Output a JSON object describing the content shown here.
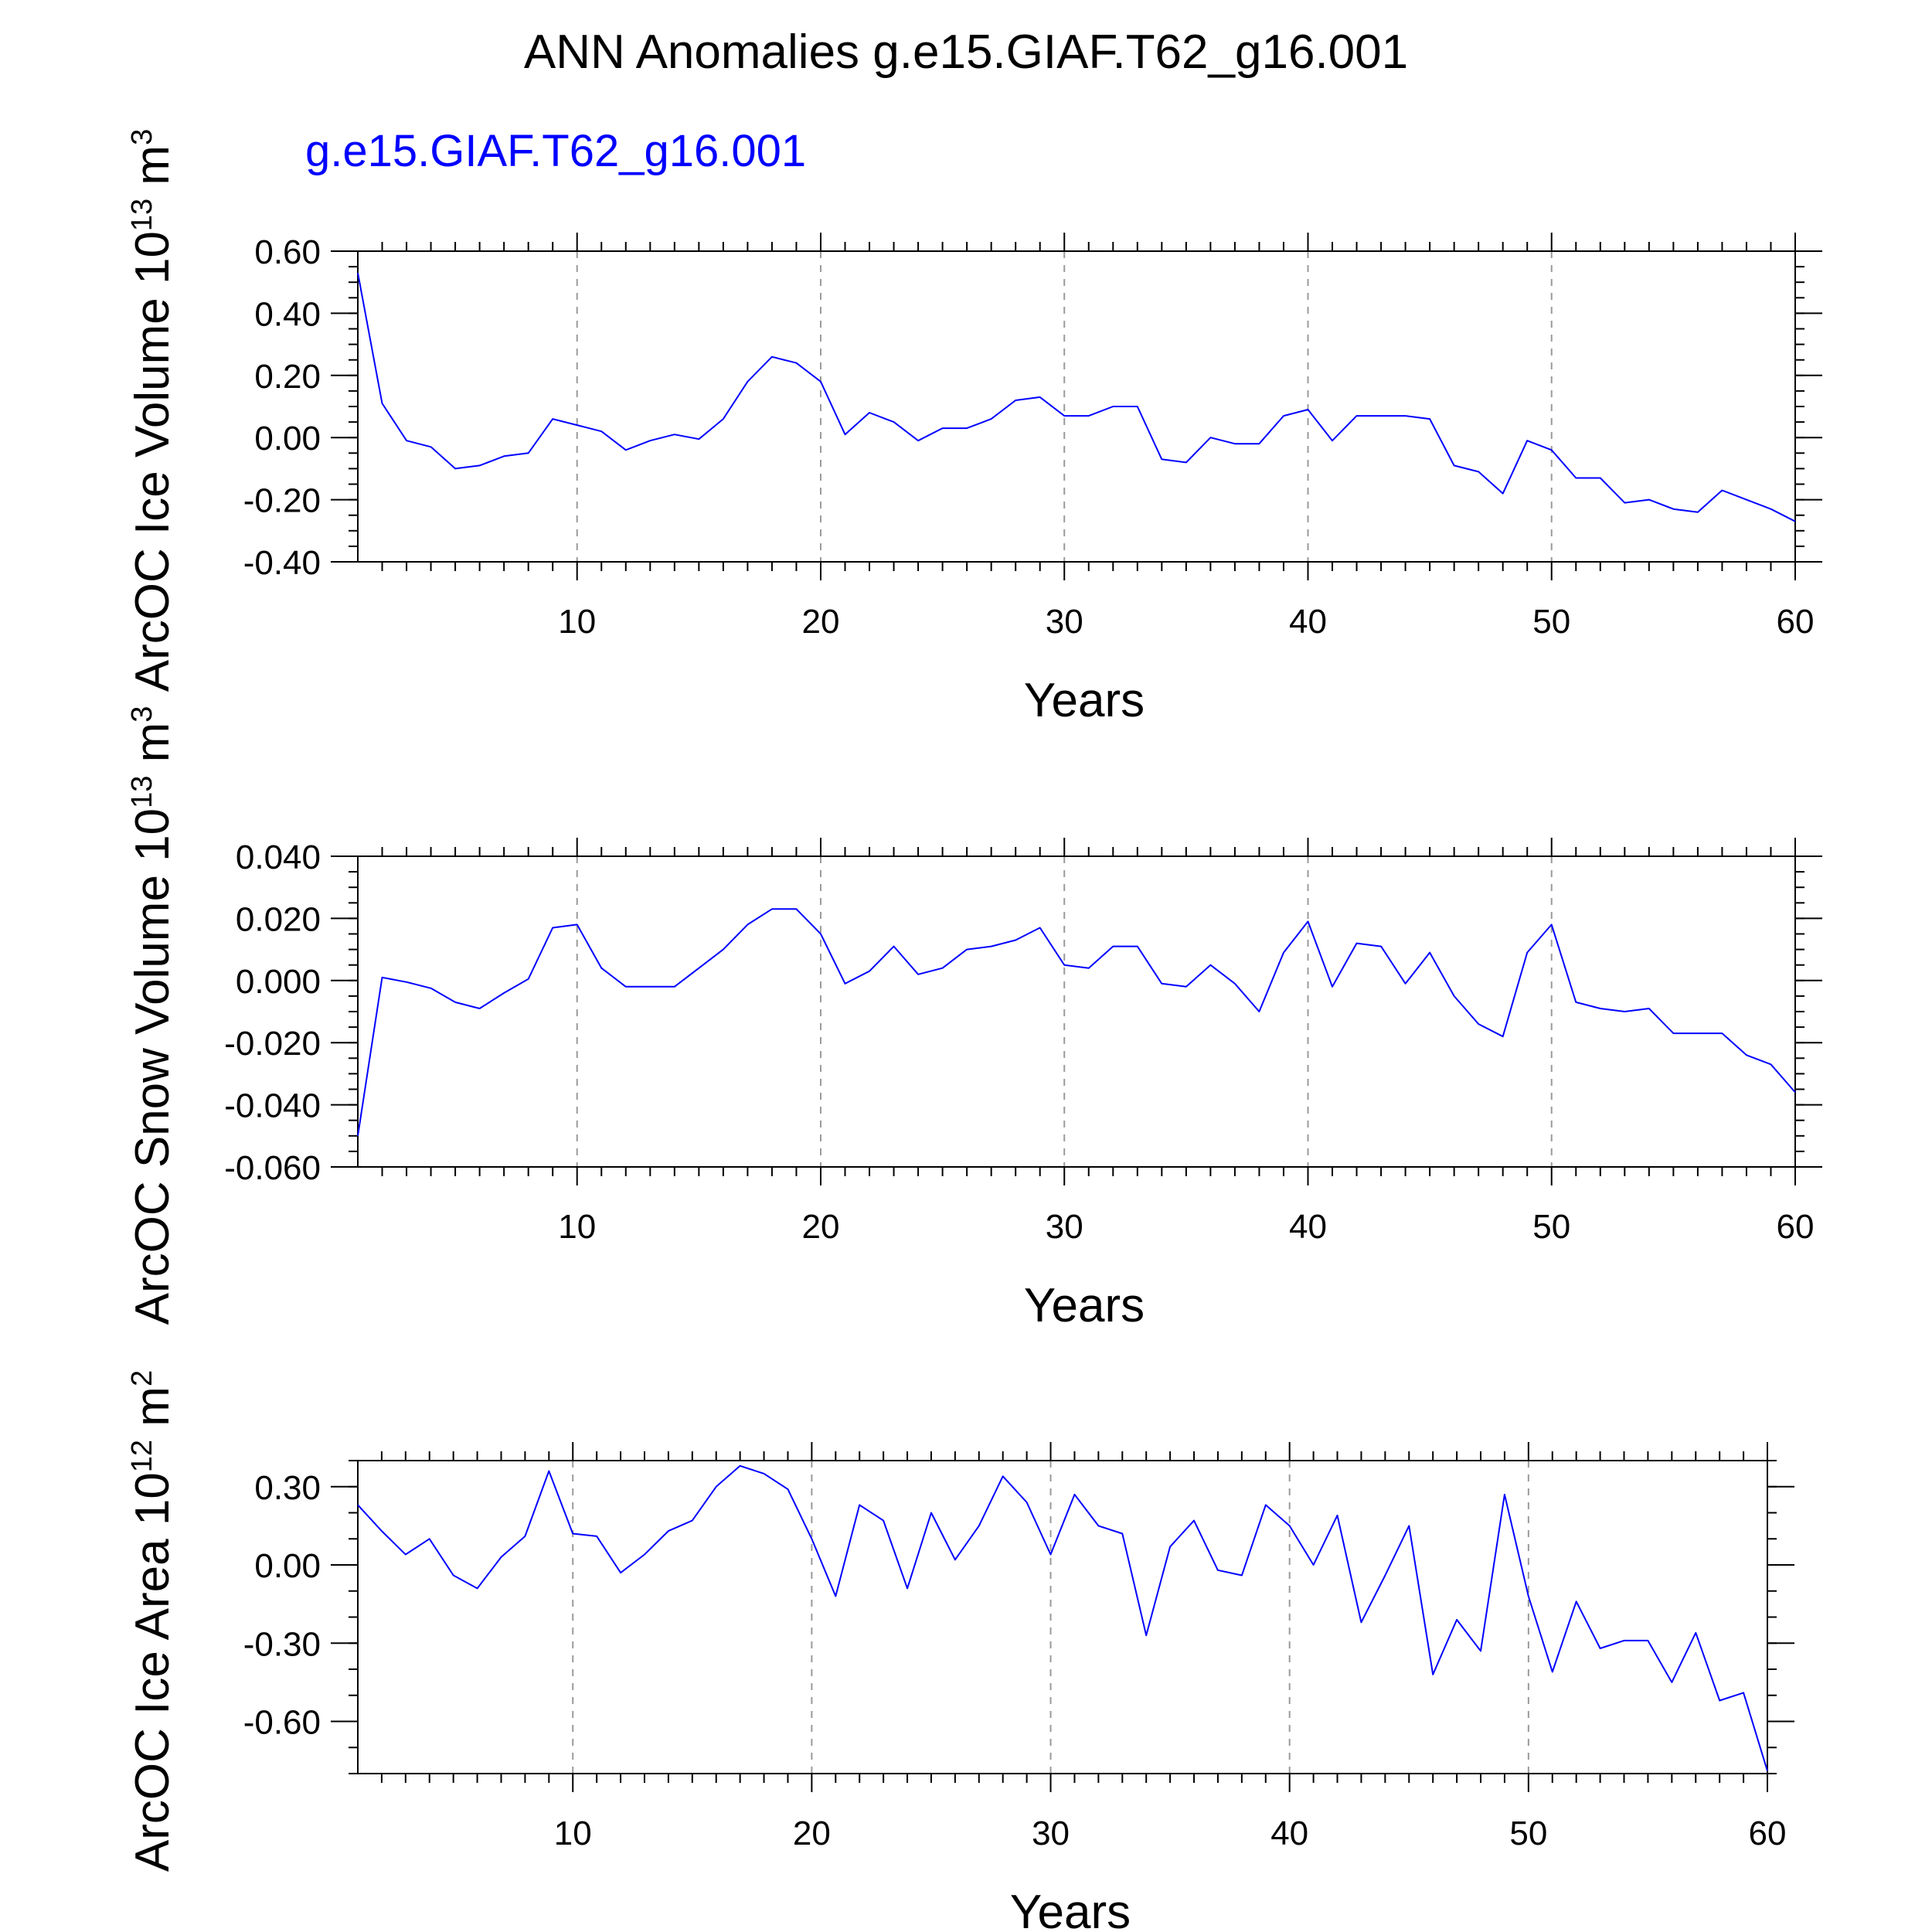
{
  "title": "ANN Anomalies g.e15.GIAF.T62_g16.001",
  "colors": {
    "series": "#0000ff",
    "axis": "#000000",
    "grid": "#9a9a9a"
  },
  "chart_data": [
    {
      "type": "line",
      "subtitle": "g.e15.GIAF.T62_g16.001",
      "ylabel": "ArcOC Ice Volume 10",
      "ylabel_exp": "13",
      "ylabel_unit": " m",
      "ylabel_unit_exp": "3",
      "xlabel": "Years",
      "xlim": [
        1,
        60
      ],
      "ylim": [
        -0.4,
        0.6
      ],
      "xticks": [
        10,
        20,
        30,
        40,
        50,
        60
      ],
      "yticks": [
        -0.4,
        -0.2,
        0.0,
        0.2,
        0.4,
        0.6
      ],
      "yticklabels": [
        "-0.40",
        "-0.20",
        "0.00",
        "0.20",
        "0.40",
        "0.60"
      ],
      "yminor": 0.05,
      "grid": "vertical dashed at x ticks",
      "series": [
        {
          "color": "#0000ff",
          "x": [
            1,
            2,
            3,
            4,
            5,
            6,
            7,
            8,
            9,
            10,
            11,
            12,
            13,
            14,
            15,
            16,
            17,
            18,
            19,
            20,
            21,
            22,
            23,
            24,
            25,
            26,
            27,
            28,
            29,
            30,
            31,
            32,
            33,
            34,
            35,
            36,
            37,
            38,
            39,
            40,
            41,
            42,
            43,
            44,
            45,
            46,
            47,
            48,
            49,
            50,
            51,
            52,
            53,
            54,
            55,
            56,
            57,
            58,
            59,
            60
          ],
          "values": [
            0.53,
            0.11,
            -0.01,
            -0.03,
            -0.1,
            -0.09,
            -0.06,
            -0.05,
            0.06,
            0.04,
            0.02,
            -0.04,
            -0.01,
            0.01,
            -0.005,
            0.06,
            0.18,
            0.26,
            0.24,
            0.18,
            0.01,
            0.08,
            0.05,
            -0.01,
            0.03,
            0.03,
            0.06,
            0.12,
            0.13,
            0.07,
            0.07,
            0.1,
            0.1,
            -0.07,
            -0.08,
            0.0,
            -0.02,
            -0.02,
            0.07,
            0.09,
            -0.01,
            0.07,
            0.07,
            0.07,
            0.06,
            -0.09,
            -0.11,
            -0.18,
            -0.01,
            -0.04,
            -0.13,
            -0.13,
            -0.21,
            -0.2,
            -0.23,
            -0.24,
            -0.17,
            -0.2,
            -0.23,
            -0.27
          ]
        }
      ]
    },
    {
      "type": "line",
      "ylabel": "ArcOC Snow Volume 10",
      "ylabel_exp": "13",
      "ylabel_unit": " m",
      "ylabel_unit_exp": "3",
      "xlabel": "Years",
      "xlim": [
        1,
        60
      ],
      "ylim": [
        -0.06,
        0.04
      ],
      "xticks": [
        10,
        20,
        30,
        40,
        50,
        60
      ],
      "yticks": [
        -0.06,
        -0.04,
        -0.02,
        0.0,
        0.02,
        0.04
      ],
      "yticklabels": [
        "-0.060",
        "-0.040",
        "-0.020",
        "0.000",
        "0.020",
        "0.040"
      ],
      "yminor": 0.005,
      "grid": "vertical dashed at x ticks",
      "series": [
        {
          "color": "#0000ff",
          "x": [
            1,
            2,
            3,
            4,
            5,
            6,
            7,
            8,
            9,
            10,
            11,
            12,
            13,
            14,
            15,
            16,
            17,
            18,
            19,
            20,
            21,
            22,
            23,
            24,
            25,
            26,
            27,
            28,
            29,
            30,
            31,
            32,
            33,
            34,
            35,
            36,
            37,
            38,
            39,
            40,
            41,
            42,
            43,
            44,
            45,
            46,
            47,
            48,
            49,
            50,
            51,
            52,
            53,
            54,
            55,
            56,
            57,
            58,
            59,
            60
          ],
          "values": [
            -0.05,
            0.001,
            -0.0005,
            -0.0025,
            -0.007,
            -0.009,
            -0.004,
            0.0005,
            0.017,
            0.018,
            0.004,
            -0.002,
            -0.002,
            -0.002,
            0.004,
            0.01,
            0.018,
            0.023,
            0.023,
            0.015,
            -0.001,
            0.003,
            0.011,
            0.002,
            0.004,
            0.01,
            0.011,
            0.013,
            0.017,
            0.005,
            0.004,
            0.011,
            0.011,
            -0.001,
            -0.002,
            0.005,
            -0.001,
            -0.01,
            0.009,
            0.019,
            -0.002,
            0.012,
            0.011,
            -0.001,
            0.009,
            -0.005,
            -0.014,
            -0.018,
            0.009,
            0.018,
            -0.007,
            -0.009,
            -0.01,
            -0.009,
            -0.017,
            -0.017,
            -0.017,
            -0.024,
            -0.027,
            -0.036
          ]
        }
      ]
    },
    {
      "type": "line",
      "ylabel": "ArcOC Ice Area 10",
      "ylabel_exp": "12",
      "ylabel_unit": " m",
      "ylabel_unit_exp": "2",
      "xlabel": "Years",
      "xlim": [
        1,
        60
      ],
      "ylim": [
        -0.8,
        0.4
      ],
      "xticks": [
        10,
        20,
        30,
        40,
        50,
        60
      ],
      "yticks": [
        -0.6,
        -0.3,
        0.0,
        0.3
      ],
      "yticklabels": [
        "-0.60",
        "-0.30",
        "0.00",
        "0.30"
      ],
      "yminor": 0.1,
      "grid": "vertical dashed at x ticks",
      "series": [
        {
          "color": "#0000ff",
          "x": [
            1,
            2,
            3,
            4,
            5,
            6,
            7,
            8,
            9,
            10,
            11,
            12,
            13,
            14,
            15,
            16,
            17,
            18,
            19,
            20,
            21,
            22,
            23,
            24,
            25,
            26,
            27,
            28,
            29,
            30,
            31,
            32,
            33,
            34,
            35,
            36,
            37,
            38,
            39,
            40,
            41,
            42,
            43,
            44,
            45,
            46,
            47,
            48,
            49,
            50,
            51,
            52,
            53,
            54,
            55,
            56,
            57,
            58,
            59,
            60
          ],
          "values": [
            0.23,
            0.13,
            0.04,
            0.1,
            -0.04,
            -0.09,
            0.03,
            0.11,
            0.36,
            0.12,
            0.11,
            -0.03,
            0.04,
            0.13,
            0.17,
            0.3,
            0.38,
            0.35,
            0.29,
            0.1,
            -0.12,
            0.23,
            0.17,
            -0.09,
            0.2,
            0.02,
            0.15,
            0.34,
            0.24,
            0.04,
            0.27,
            0.15,
            0.12,
            -0.27,
            0.07,
            0.17,
            -0.02,
            -0.04,
            0.23,
            0.15,
            0.0,
            0.19,
            -0.22,
            -0.04,
            0.15,
            -0.42,
            -0.21,
            -0.33,
            0.27,
            -0.12,
            -0.41,
            -0.14,
            -0.32,
            -0.29,
            -0.29,
            -0.45,
            -0.26,
            -0.52,
            -0.49,
            -0.79
          ]
        }
      ]
    }
  ]
}
